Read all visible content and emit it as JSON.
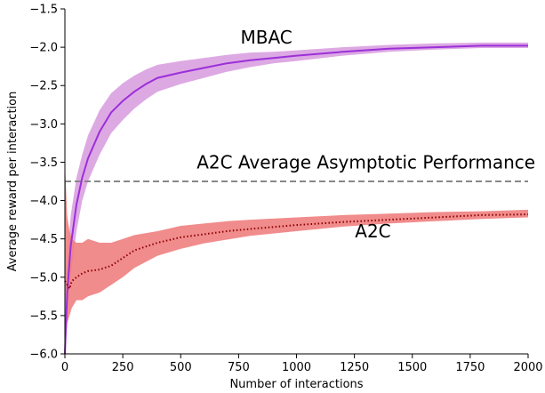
{
  "chart_data": {
    "type": "line",
    "title": "",
    "xlabel": "Number of interactions",
    "ylabel": "Average reward per interaction",
    "xlim": [
      0,
      2000
    ],
    "ylim": [
      -6.0,
      -1.5
    ],
    "xticks": [
      0,
      250,
      500,
      750,
      1000,
      1250,
      1500,
      1750,
      2000
    ],
    "xtick_labels": [
      "0",
      "250",
      "500",
      "750",
      "1000",
      "1250",
      "1500",
      "1750",
      "2000"
    ],
    "yticks": [
      -6.0,
      -5.5,
      -5.0,
      -4.5,
      -4.0,
      -3.5,
      -3.0,
      -2.5,
      -2.0,
      -1.5
    ],
    "ytick_labels": [
      "−6.0",
      "−5.5",
      "−5.0",
      "−4.5",
      "−4.0",
      "−3.5",
      "−3.0",
      "−2.5",
      "−2.0",
      "−1.5"
    ],
    "grid": false,
    "legend": "none",
    "series": [
      {
        "name": "MBAC",
        "line_color": "#9b30d9",
        "band_color": "#d9a0e0",
        "line_style": "solid",
        "x": [
          0,
          10,
          25,
          50,
          75,
          100,
          150,
          200,
          250,
          300,
          350,
          400,
          500,
          600,
          700,
          800,
          900,
          1000,
          1200,
          1400,
          1600,
          1800,
          2000
        ],
        "y": [
          -6.0,
          -5.2,
          -4.6,
          -4.05,
          -3.7,
          -3.45,
          -3.1,
          -2.85,
          -2.7,
          -2.58,
          -2.48,
          -2.4,
          -2.33,
          -2.27,
          -2.21,
          -2.17,
          -2.14,
          -2.11,
          -2.06,
          -2.02,
          -2.0,
          -1.98,
          -1.98
        ],
        "lower": [
          -6.0,
          -5.6,
          -5.0,
          -4.4,
          -4.0,
          -3.75,
          -3.4,
          -3.12,
          -2.95,
          -2.8,
          -2.68,
          -2.58,
          -2.48,
          -2.4,
          -2.32,
          -2.26,
          -2.21,
          -2.18,
          -2.11,
          -2.06,
          -2.03,
          -2.01,
          -2.01
        ],
        "upper": [
          -6.0,
          -4.8,
          -4.2,
          -3.7,
          -3.4,
          -3.15,
          -2.82,
          -2.6,
          -2.47,
          -2.37,
          -2.29,
          -2.23,
          -2.18,
          -2.14,
          -2.1,
          -2.07,
          -2.06,
          -2.04,
          -2.0,
          -1.97,
          -1.95,
          -1.94,
          -1.94
        ]
      },
      {
        "name": "A2C",
        "line_color": "#8b0000",
        "band_color": "#f08080",
        "line_style": "dotted",
        "x": [
          0,
          10,
          20,
          30,
          50,
          75,
          100,
          150,
          200,
          250,
          300,
          400,
          500,
          600,
          700,
          800,
          1000,
          1200,
          1400,
          1600,
          1800,
          2000
        ],
        "y": [
          -5.05,
          -5.1,
          -5.15,
          -5.05,
          -5.0,
          -4.95,
          -4.92,
          -4.9,
          -4.85,
          -4.75,
          -4.65,
          -4.55,
          -4.48,
          -4.44,
          -4.4,
          -4.37,
          -4.32,
          -4.28,
          -4.25,
          -4.22,
          -4.19,
          -4.18
        ],
        "lower": [
          -6.0,
          -5.6,
          -5.5,
          -5.4,
          -5.3,
          -5.3,
          -5.25,
          -5.2,
          -5.1,
          -5.0,
          -4.88,
          -4.72,
          -4.63,
          -4.56,
          -4.51,
          -4.46,
          -4.4,
          -4.34,
          -4.3,
          -4.27,
          -4.24,
          -4.22
        ],
        "upper": [
          -3.5,
          -4.2,
          -4.4,
          -4.5,
          -4.55,
          -4.55,
          -4.5,
          -4.55,
          -4.55,
          -4.5,
          -4.45,
          -4.4,
          -4.33,
          -4.3,
          -4.27,
          -4.25,
          -4.22,
          -4.19,
          -4.17,
          -4.15,
          -4.14,
          -4.12
        ]
      }
    ],
    "reference_line": {
      "y": -3.75,
      "color": "#888888",
      "style": "dashed"
    },
    "annotations": [
      {
        "text": "MBAC",
        "x": 870,
        "y": -1.95
      },
      {
        "text": "A2C Average Asymptotic Performance",
        "x": 1300,
        "y": -3.58
      },
      {
        "text": "A2C",
        "x": 1330,
        "y": -4.48
      }
    ]
  }
}
